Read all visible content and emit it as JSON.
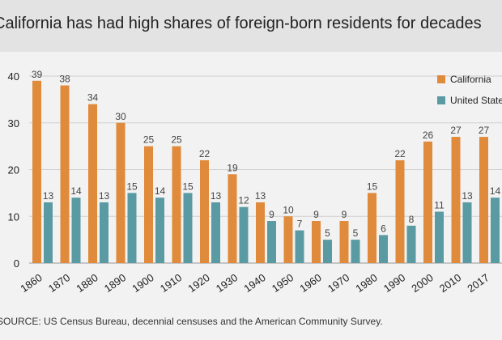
{
  "chart_data": {
    "type": "bar",
    "title": "California has had high shares of foreign-born residents for decades",
    "xlabel": "",
    "ylabel": "",
    "categories": [
      "1860",
      "1870",
      "1880",
      "1890",
      "1900",
      "1910",
      "1920",
      "1930",
      "1940",
      "1950",
      "1960",
      "1970",
      "1980",
      "1990",
      "2000",
      "2010",
      "2017"
    ],
    "series": [
      {
        "name": "California",
        "color": "#e08a3c",
        "values": [
          39,
          38,
          34,
          30,
          25,
          25,
          22,
          19,
          13,
          10,
          9,
          9,
          15,
          22,
          26,
          27,
          27
        ]
      },
      {
        "name": "United States",
        "color": "#5a9aa3",
        "values": [
          13,
          14,
          13,
          15,
          14,
          15,
          13,
          12,
          9,
          7,
          5,
          5,
          6,
          8,
          11,
          13,
          14
        ]
      }
    ],
    "ylim": [
      0,
      40
    ],
    "yticks": [
      0,
      10,
      20,
      30,
      40
    ],
    "grid": true,
    "legend": "top-right",
    "source": "SOURCE: US Census Bureau, decennial censuses and the American Community Survey."
  }
}
